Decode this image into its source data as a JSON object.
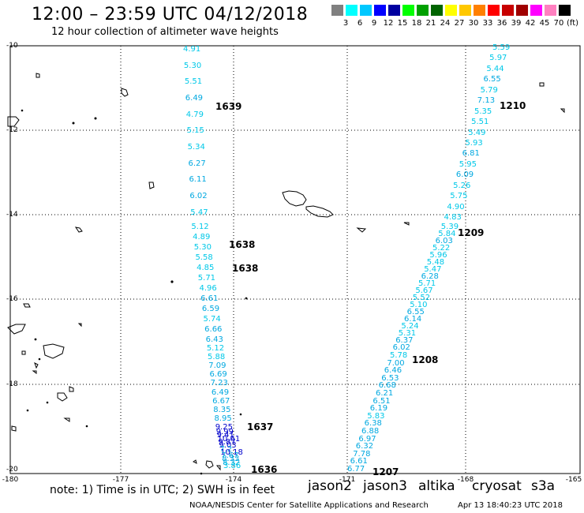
{
  "header": {
    "title": "12:00 – 23:59 UTC 04/12/2018",
    "subtitle": "12 hour collection of altimeter wave heights"
  },
  "legend_scale": {
    "labels": [
      "3",
      "6",
      "9",
      "12",
      "15",
      "18",
      "21",
      "24",
      "27",
      "30",
      "33",
      "36",
      "39",
      "42",
      "45",
      "70"
    ],
    "unit": "(ft)",
    "colors": [
      "#808080",
      "#00ffff",
      "#00c8ff",
      "#0000ff",
      "#0000a0",
      "#00ff00",
      "#00a000",
      "#006400",
      "#ffff00",
      "#ffc800",
      "#ff8000",
      "#ff0000",
      "#c80000",
      "#a00000",
      "#ff00ff",
      "#ff80c0",
      "#000000"
    ]
  },
  "map": {
    "lat_labels": [
      "-10",
      "-12",
      "-14",
      "-16",
      "-18",
      "-20"
    ],
    "lon_labels": [
      "-180",
      "-177",
      "-174",
      "-171",
      "-168",
      "-165"
    ],
    "passes": [
      {
        "label": "1639",
        "color": "#cc0000"
      },
      {
        "label": "1638",
        "color": "#cc0000"
      },
      {
        "label": "1638",
        "color": "#cc0000"
      },
      {
        "label": "1637",
        "color": "#cc0000"
      },
      {
        "label": "1636",
        "color": "#cc0000"
      },
      {
        "label": "1210",
        "color": "#008000"
      },
      {
        "label": "1209",
        "color": "#008000"
      },
      {
        "label": "1208",
        "color": "#008000"
      },
      {
        "label": "1207",
        "color": "#008000"
      }
    ],
    "track_west": [
      "4.91",
      "5.30",
      "5.51",
      "6.49",
      "4.79",
      "5.15",
      "5.34",
      "6.27",
      "6.11",
      "6.02",
      "5.47",
      "5.12",
      "4.89",
      "5.30",
      "5.58",
      "4.85",
      "5.71",
      "4.96",
      "6.61",
      "6.59",
      "5.74",
      "6.66",
      "6.43",
      "5.12",
      "5.88",
      "7.09",
      "6.69",
      "7.23",
      "6.49",
      "6.67",
      "8.35",
      "8.95",
      "9.25",
      "9.99",
      "9.41",
      "10.61",
      "9.87",
      "9.03",
      "7.2",
      "10.18",
      "7.67",
      "8.33",
      "8.32",
      "3.86"
    ],
    "track_east": [
      "5.59",
      "5.97",
      "5.44",
      "6.55",
      "5.79",
      "7.13",
      "5.35",
      "5.51",
      "5.49",
      "5.93",
      "6.81",
      "5.95",
      "6.09",
      "5.26",
      "5.75",
      "4.90",
      "4.83",
      "5.39",
      "5.84",
      "6.03",
      "5.22",
      "5.96",
      "5.48",
      "5.47",
      "6.28",
      "5.71",
      "5.67",
      "5.52",
      "5.10",
      "6.55",
      "6.14",
      "5.24",
      "5.31",
      "6.37",
      "6.02",
      "5.78",
      "7.00",
      "6.46",
      "6.53",
      "6.68",
      "6.21",
      "6.51",
      "6.19",
      "5.83",
      "6.38",
      "6.88",
      "6.97",
      "6.32",
      "7.78",
      "6.61",
      "6.77"
    ]
  },
  "footer": {
    "note": "note: 1) Time is in UTC; 2) SWH is in feet",
    "satellites": [
      {
        "name": "jason2",
        "color": "#0000cc"
      },
      {
        "name": "jason3",
        "color": "#008000"
      },
      {
        "name": "altika",
        "color": "#ff9900"
      },
      {
        "name": "cryosat",
        "color": "#cc0000"
      },
      {
        "name": "s3a",
        "color": "#990000"
      }
    ],
    "credit": "NOAA/NESDIS Center for Satellite Applications and Research",
    "timestamp": "Apr 13 18:40:23 UTC 2018"
  }
}
